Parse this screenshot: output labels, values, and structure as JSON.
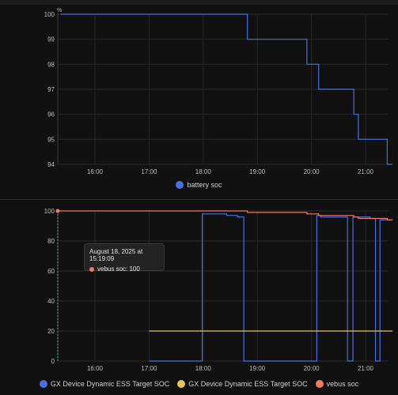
{
  "chart_data": [
    {
      "type": "line",
      "ylabel": "%",
      "ylim": [
        94,
        100
      ],
      "yticks": [
        "100",
        "99",
        "98",
        "97",
        "96",
        "95",
        "94"
      ],
      "xticks": [
        "16:00",
        "17:00",
        "18:00",
        "19:00",
        "20:00",
        "21:00"
      ],
      "grid": true,
      "legend_position": "bottom",
      "series": [
        {
          "name": "battery soc",
          "color": "#4a6fe0",
          "step": true,
          "points": [
            [
              "15:22",
              100
            ],
            [
              "18:49",
              99
            ],
            [
              "19:55",
              98
            ],
            [
              "20:08",
              97
            ],
            [
              "20:47",
              96
            ],
            [
              "20:52",
              95
            ],
            [
              "21:24",
              94
            ],
            [
              "21:30",
              94
            ]
          ]
        }
      ]
    },
    {
      "type": "line",
      "ylim": [
        0,
        100
      ],
      "yticks": [
        "100",
        "80",
        "60",
        "40",
        "20",
        "0"
      ],
      "xticks": [
        "16:00",
        "17:00",
        "18:00",
        "19:00",
        "20:00",
        "21:00"
      ],
      "grid": true,
      "legend_position": "bottom",
      "series": [
        {
          "name": "GX Device Dynamic ESS Target SOC",
          "color": "#4a6fe0",
          "step": true,
          "points": [
            [
              "17:00",
              0
            ],
            [
              "17:59",
              98
            ],
            [
              "18:26",
              97
            ],
            [
              "18:38",
              96
            ],
            [
              "18:45",
              0
            ],
            [
              "20:06",
              97
            ],
            [
              "20:10",
              96
            ],
            [
              "20:40",
              0
            ],
            [
              "20:46",
              96
            ],
            [
              "21:05",
              95
            ],
            [
              "21:11",
              0
            ],
            [
              "21:16",
              94
            ],
            [
              "21:30",
              94
            ]
          ]
        },
        {
          "name": "GX Device Dynamic ESS Target SOC",
          "color": "#e8c35a",
          "step": true,
          "points": [
            [
              "17:00",
              20
            ],
            [
              "21:30",
              20
            ]
          ]
        },
        {
          "name": "vebus soc",
          "color": "#f07a62",
          "step": true,
          "points": [
            [
              "15:19",
              100
            ],
            [
              "18:49",
              99
            ],
            [
              "19:55",
              98
            ],
            [
              "20:08",
              97
            ],
            [
              "20:47",
              96
            ],
            [
              "20:52",
              95
            ],
            [
              "21:24",
              94
            ],
            [
              "21:30",
              94
            ]
          ]
        }
      ],
      "tooltip": {
        "title": "August 18, 2025 at 15:19:09",
        "series": "vebus soc",
        "text": "vebus soc: 100"
      }
    }
  ]
}
